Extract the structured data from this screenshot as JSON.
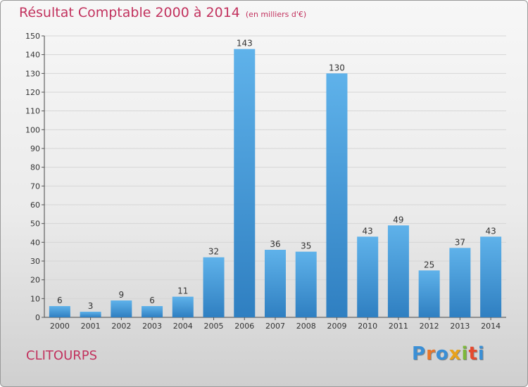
{
  "header": {
    "title": "Résultat Comptable 2000 à 2014",
    "subtitle": "(en milliers d'€)"
  },
  "footer": {
    "commune": "CLITOURPS",
    "logo": "Proxiti"
  },
  "colors": {
    "title": "#c2325e",
    "bar_top": "#5fb2ea",
    "bar_bottom": "#2f7fc1",
    "logo_letters": [
      "#3a8fd6",
      "#e8762b",
      "#3a8fd6",
      "#e8a21b",
      "#7cb83a",
      "#e5492e",
      "#3a8fd6"
    ]
  },
  "chart_data": {
    "type": "bar",
    "title": "Résultat Comptable 2000 à 2014",
    "subtitle": "(en milliers d'€)",
    "xlabel": "",
    "ylabel": "",
    "categories": [
      "2000",
      "2001",
      "2002",
      "2003",
      "2004",
      "2005",
      "2006",
      "2007",
      "2008",
      "2009",
      "2010",
      "2011",
      "2012",
      "2013",
      "2014"
    ],
    "values": [
      6,
      3,
      9,
      6,
      11,
      32,
      143,
      36,
      35,
      130,
      43,
      49,
      25,
      37,
      43
    ],
    "ylim": [
      0,
      150
    ],
    "yticks": [
      0,
      10,
      20,
      30,
      40,
      50,
      60,
      70,
      80,
      90,
      100,
      110,
      120,
      130,
      140,
      150
    ],
    "grid": true,
    "legend": "none"
  }
}
